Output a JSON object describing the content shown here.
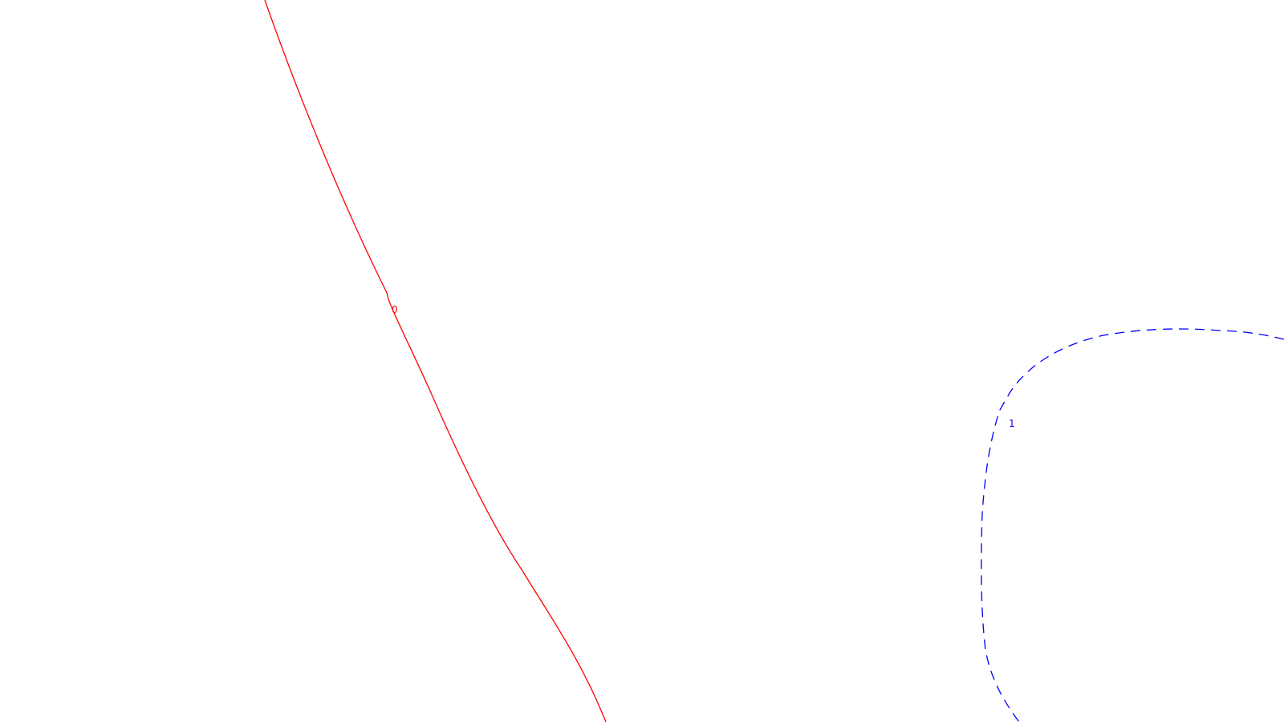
{
  "diagram": {
    "curves": [
      {
        "label": "0",
        "color": "#ff0000",
        "line_style": "solid"
      },
      {
        "label": "1",
        "color": "#0000ff",
        "line_style": "dashed"
      }
    ]
  }
}
